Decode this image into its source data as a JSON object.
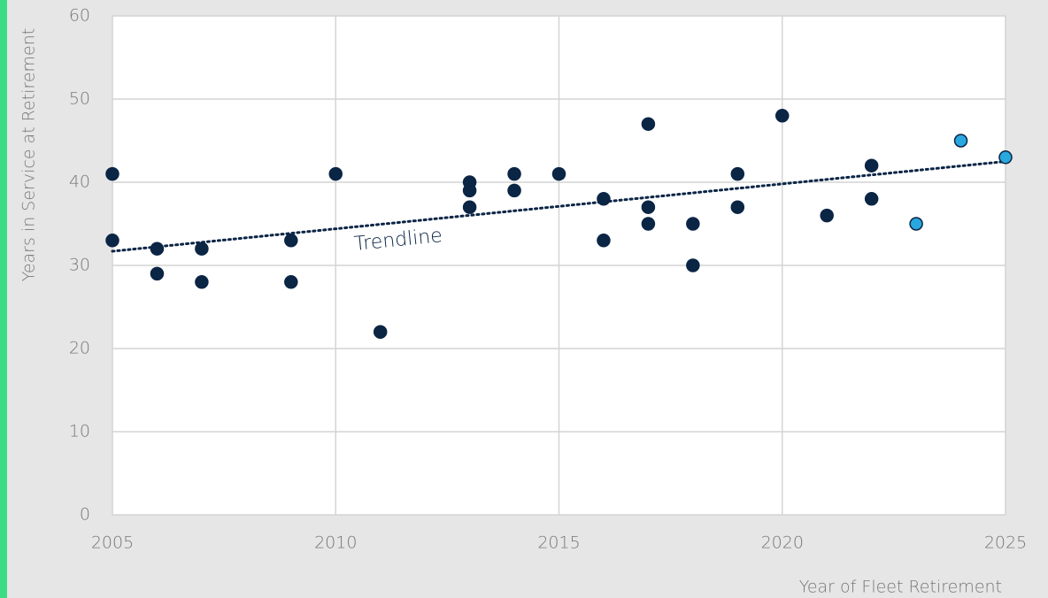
{
  "chart_data": {
    "type": "scatter",
    "xlabel": "Year of Fleet Retirement",
    "ylabel": "Years in Service at Retirement",
    "xlim": [
      2005,
      2025
    ],
    "xticks": [
      2005,
      2010,
      2015,
      2020,
      2025
    ],
    "ylim": [
      0,
      60
    ],
    "yticks": [
      0,
      10,
      20,
      30,
      40,
      50,
      60
    ],
    "grid": true,
    "series": [
      {
        "color": "#0b2545",
        "x": [
          2005,
          2005,
          2006,
          2006,
          2007,
          2007,
          2009,
          2009,
          2010,
          2011,
          2013,
          2013,
          2013,
          2014,
          2014,
          2015,
          2016,
          2016,
          2017,
          2017,
          2017,
          2018,
          2018,
          2019,
          2019,
          2020,
          2021,
          2022,
          2022
        ],
        "values": [
          41,
          33,
          32,
          29,
          32,
          28,
          33,
          28,
          41,
          22,
          40,
          39,
          37,
          41,
          39,
          41,
          38,
          33,
          47,
          37,
          35,
          35,
          30,
          41,
          37,
          48,
          36,
          42,
          38
        ]
      },
      {
        "color": "#29a8e0",
        "x": [
          2023,
          2024,
          2025
        ],
        "values": [
          35,
          45,
          43
        ]
      }
    ],
    "trendline": {
      "label": "Trendline",
      "color": "#0b2545",
      "x": [
        2005,
        2025
      ],
      "values": [
        31.7,
        42.5
      ]
    }
  }
}
